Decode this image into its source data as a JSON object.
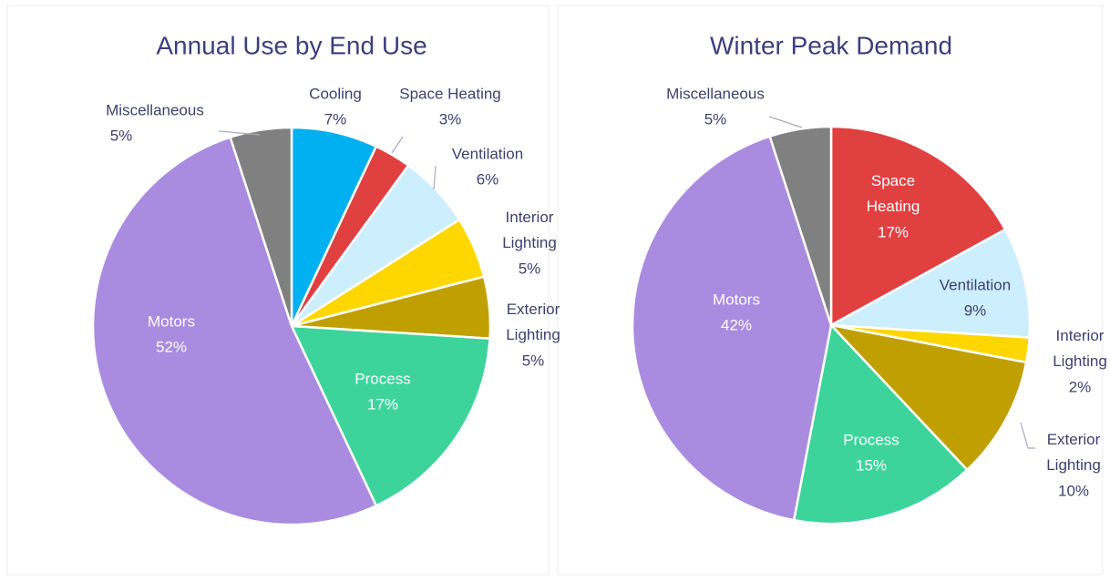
{
  "chart_data": [
    {
      "type": "pie",
      "title": "Annual Use by End Use",
      "categories": [
        "Cooling",
        "Space Heating",
        "Ventilation",
        "Interior Lighting",
        "Exterior Lighting",
        "Process",
        "Motors",
        "Miscellaneous"
      ],
      "values": [
        7,
        3,
        6,
        5,
        5,
        17,
        52,
        5
      ],
      "value_labels": [
        "7%",
        "3%",
        "6%",
        "5%",
        "5%",
        "17%",
        "52%",
        "5%"
      ],
      "colors": [
        "#00b0f0",
        "#e04040",
        "#cdeefc",
        "#ffd700",
        "#c0a000",
        "#3dd49c",
        "#a98be0",
        "#808080"
      ]
    },
    {
      "type": "pie",
      "title": "Winter Peak Demand",
      "categories": [
        "Space Heating",
        "Ventilation",
        "Interior Lighting",
        "Exterior Lighting",
        "Process",
        "Motors",
        "Miscellaneous"
      ],
      "values": [
        17,
        9,
        2,
        10,
        15,
        42,
        5
      ],
      "value_labels": [
        "17%",
        "9%",
        "2%",
        "10%",
        "15%",
        "42%",
        "5%"
      ],
      "colors": [
        "#e04040",
        "#cdeefc",
        "#ffd700",
        "#c0a000",
        "#3dd49c",
        "#a98be0",
        "#808080"
      ]
    }
  ]
}
